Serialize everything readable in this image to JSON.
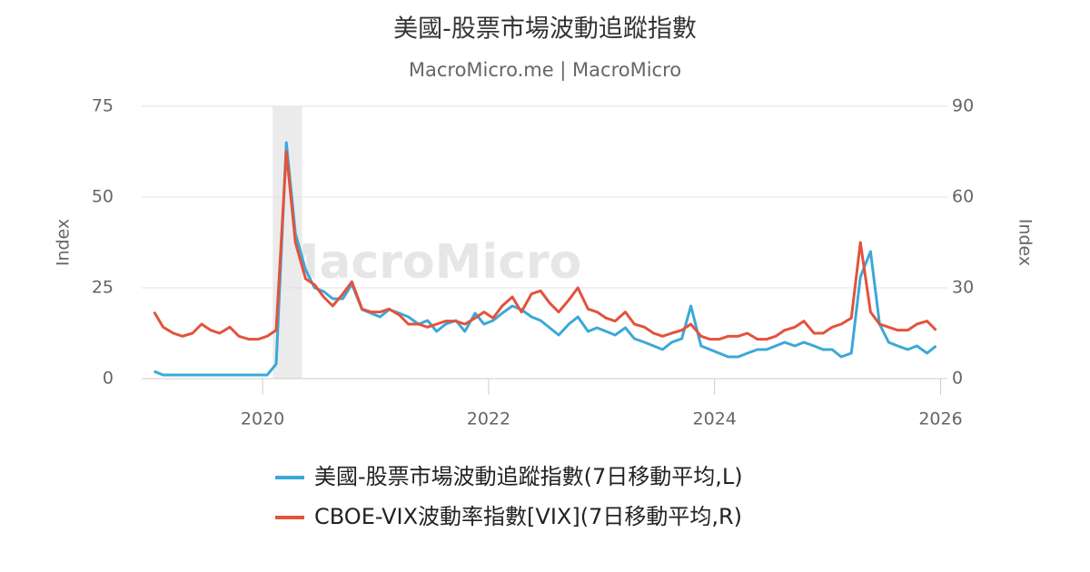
{
  "chart_data": {
    "type": "line",
    "title": "美國-股票市場波動追蹤指數",
    "subtitle": "MacroMicro.me | MacroMicro",
    "watermark": "MacroMicro",
    "y_label": "Index",
    "y2_label": "Index",
    "x": [
      2019.04,
      2019.12,
      2019.21,
      2019.29,
      2019.38,
      2019.46,
      2019.54,
      2019.62,
      2019.71,
      2019.79,
      2019.88,
      2019.96,
      2020.04,
      2020.12,
      2020.21,
      2020.29,
      2020.38,
      2020.46,
      2020.54,
      2020.62,
      2020.71,
      2020.79,
      2020.88,
      2020.96,
      2021.04,
      2021.12,
      2021.21,
      2021.29,
      2021.38,
      2021.46,
      2021.54,
      2021.62,
      2021.71,
      2021.79,
      2021.88,
      2021.96,
      2022.04,
      2022.12,
      2022.21,
      2022.29,
      2022.38,
      2022.46,
      2022.54,
      2022.62,
      2022.71,
      2022.79,
      2022.88,
      2022.96,
      2023.04,
      2023.12,
      2023.21,
      2023.29,
      2023.38,
      2023.46,
      2023.54,
      2023.62,
      2023.71,
      2023.79,
      2023.88,
      2023.96,
      2024.04,
      2024.12,
      2024.21,
      2024.29,
      2024.38,
      2024.46,
      2024.54,
      2024.62,
      2024.71,
      2024.79,
      2024.88,
      2024.96,
      2025.04,
      2025.12,
      2025.21,
      2025.29,
      2025.38,
      2025.46,
      2025.54,
      2025.62,
      2025.71,
      2025.79,
      2025.88,
      2025.96
    ],
    "xlim": [
      2018.93,
      2026.06
    ],
    "xticks": [
      2020,
      2022,
      2024,
      2026
    ],
    "ylim": [
      0,
      75
    ],
    "yticks": [
      0,
      25,
      50,
      75
    ],
    "y2lim": [
      0,
      90
    ],
    "y2ticks": [
      0,
      30,
      60,
      90
    ],
    "grid": true,
    "shaded_regions": [
      [
        2020.09,
        2020.35
      ]
    ],
    "series": [
      {
        "name": "美國-股票市場波動追蹤指數(7日移動平均,L)",
        "color": "#3ba8d8",
        "values": [
          2,
          1,
          1,
          1,
          1,
          1,
          1,
          1,
          1,
          1,
          1,
          1,
          1,
          4,
          65,
          40,
          30,
          25,
          24,
          22,
          22,
          26,
          19,
          18,
          17,
          19,
          18,
          17,
          15,
          16,
          13,
          15,
          16,
          13,
          18,
          15,
          16,
          18,
          20,
          19,
          17,
          16,
          14,
          12,
          15,
          17,
          13,
          14,
          13,
          12,
          14,
          11,
          10,
          9,
          8,
          10,
          11,
          20,
          9,
          8,
          7,
          6,
          6,
          7,
          8,
          8,
          9,
          10,
          9,
          10,
          9,
          8,
          8,
          6,
          7,
          28,
          35,
          15,
          10,
          9,
          8,
          9,
          7,
          9
        ]
      },
      {
        "name": "CBOE-VIX波動率指數[VIX](7日移動平均,R)",
        "color": "#e2533c",
        "axis": "y2",
        "values": [
          22,
          17,
          15,
          14,
          15,
          18,
          16,
          15,
          17,
          14,
          13,
          13,
          14,
          16,
          75,
          45,
          33,
          31,
          27,
          24,
          28,
          32,
          23,
          22,
          22,
          23,
          21,
          18,
          18,
          17,
          18,
          19,
          19,
          18,
          20,
          22,
          20,
          24,
          27,
          22,
          28,
          29,
          25,
          22,
          26,
          30,
          23,
          22,
          20,
          19,
          22,
          18,
          17,
          15,
          14,
          15,
          16,
          18,
          14,
          13,
          13,
          14,
          14,
          15,
          13,
          13,
          14,
          16,
          17,
          19,
          15,
          15,
          17,
          18,
          20,
          45,
          22,
          18,
          17,
          16,
          16,
          18,
          19,
          16
        ]
      }
    ]
  }
}
